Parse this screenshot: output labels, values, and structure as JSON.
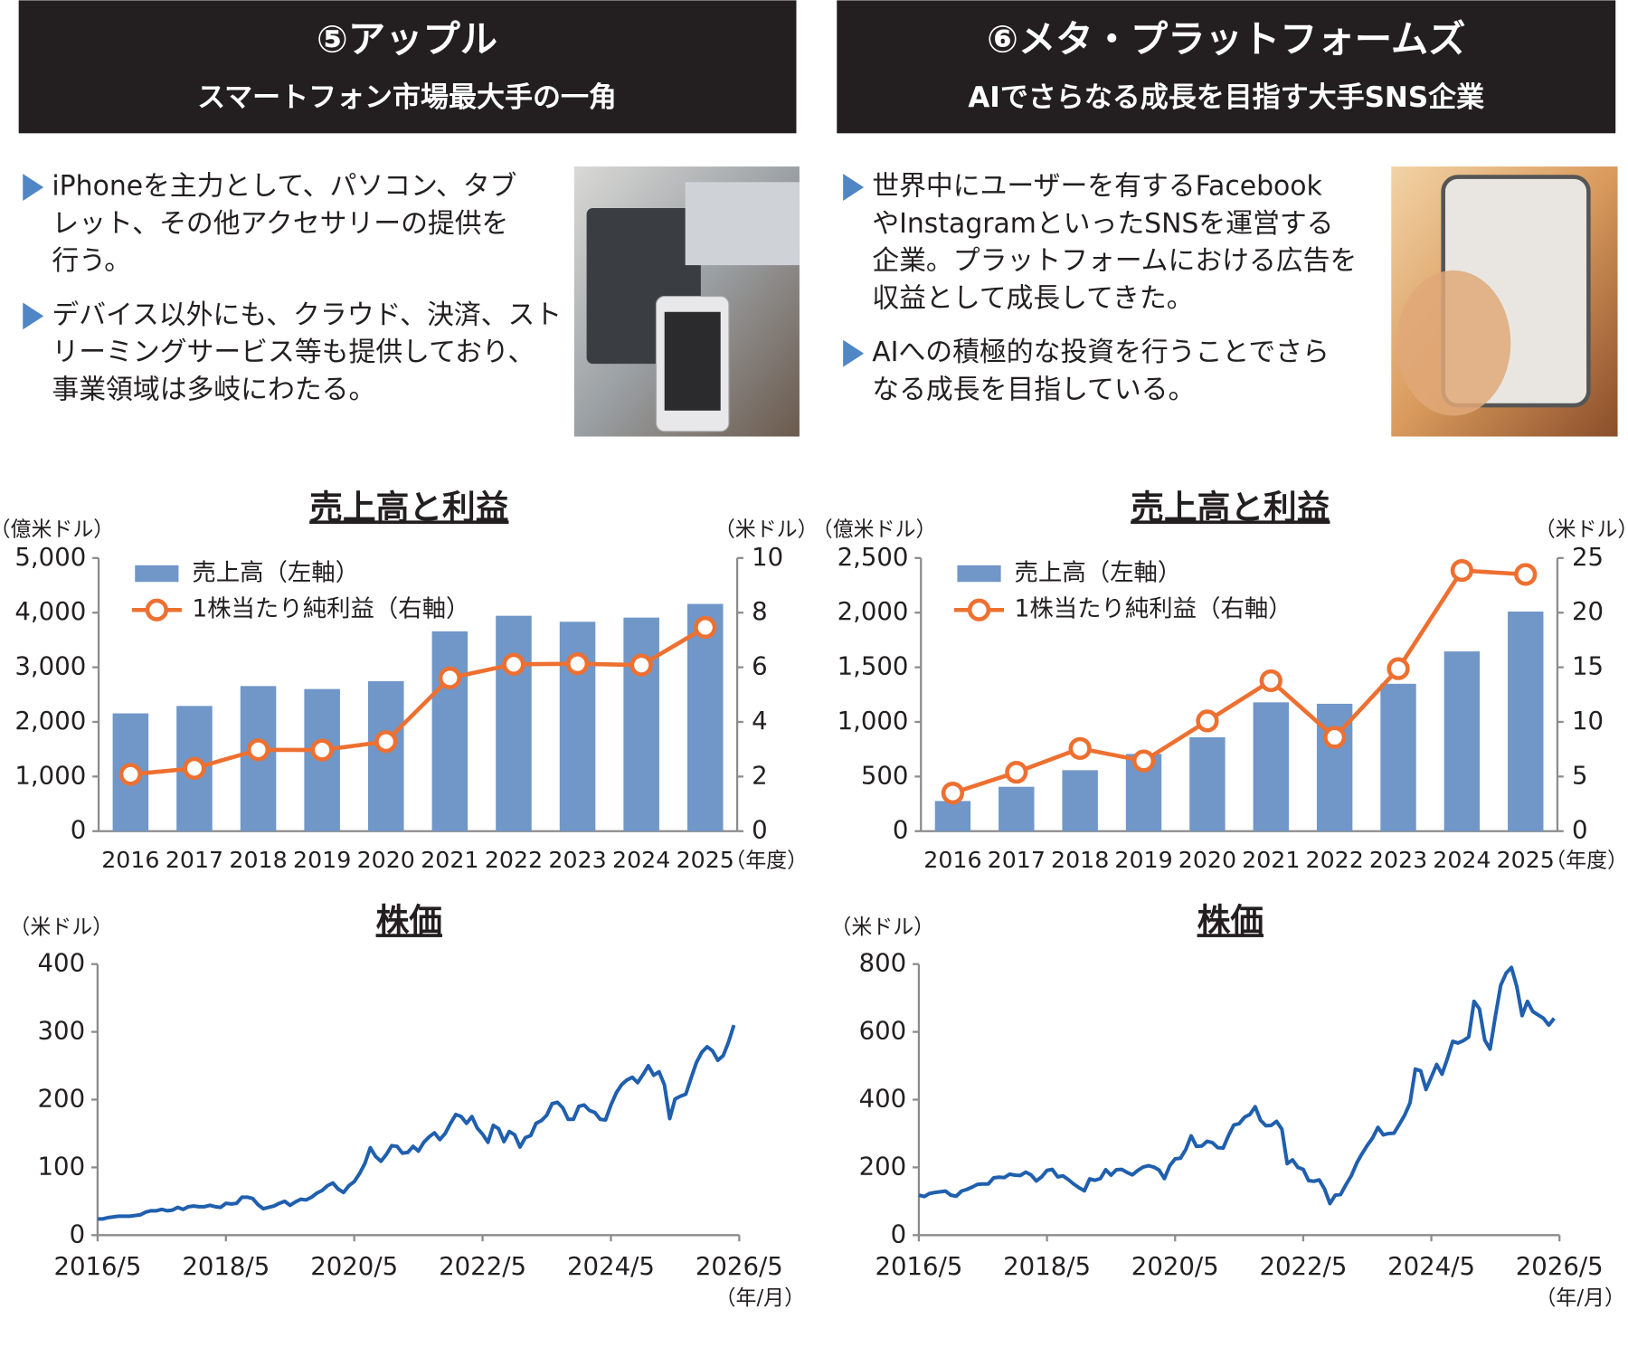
{
  "panels": [
    {
      "title": "⑤アップル",
      "subtitle": "スマートフォン市場最大手の一角",
      "bullets": [
        [
          "iPhoneを主力として、パソコン、タブ",
          "レット、その他アクセサリーの提供を",
          "行う。"
        ],
        [
          "デバイス以外にも、クラウド、決済、スト",
          "リーミングサービス等も提供しており、",
          "事業領域は多岐にわたる。"
        ]
      ]
    },
    {
      "title": "⑥メタ・プラットフォームズ",
      "subtitle": "AIでさらなる成長を目指す大手SNS企業",
      "bullets": [
        [
          "世界中にユーザーを有するFacebook",
          "やInstagramといったSNSを運営する",
          "企業。プラットフォームにおける広告を",
          "収益として成長してきた。"
        ],
        [
          "AIへの積極的な投資を行うことでさら",
          "なる成長を目指している。"
        ]
      ]
    }
  ],
  "chart_data": [
    {
      "type": "combo",
      "title": "売上高と利益",
      "y_unit": "（億米ドル）",
      "y2_unit": "（米ドル）",
      "x_unit": "（年度）",
      "categories": [
        "2016",
        "2017",
        "2018",
        "2019",
        "2020",
        "2021",
        "2022",
        "2023",
        "2024",
        "2025"
      ],
      "series": [
        {
          "name": "売上高（左軸）",
          "kind": "bar",
          "color": "#7097c8",
          "values": [
            2156,
            2292,
            2656,
            2602,
            2745,
            3658,
            3943,
            3833,
            3910,
            4160
          ]
        },
        {
          "name": "1株当たり純利益（右軸）",
          "kind": "line",
          "axis": "y2",
          "color": "#ed7031",
          "values": [
            2.08,
            2.3,
            2.98,
            2.97,
            3.28,
            5.61,
            6.11,
            6.13,
            6.08,
            7.46
          ]
        }
      ],
      "ylim": [
        0,
        5000
      ],
      "yticks": [
        0,
        {
          "value": 1000,
          "label": "1,000"
        },
        {
          "value": 2000,
          "label": "2,000"
        },
        {
          "value": 3000,
          "label": "3,000"
        },
        {
          "value": 4000,
          "label": "4,000"
        },
        {
          "value": 5000,
          "label": "5,000"
        }
      ],
      "y2lim": [
        0,
        10
      ],
      "y2ticks": [
        0,
        2,
        4,
        6,
        8,
        10
      ]
    },
    {
      "type": "combo",
      "title": "売上高と利益",
      "y_unit": "（億米ドル）",
      "y2_unit": "（米ドル）",
      "x_unit": "（年度）",
      "categories": [
        "2016",
        "2017",
        "2018",
        "2019",
        "2020",
        "2021",
        "2022",
        "2023",
        "2024",
        "2025"
      ],
      "series": [
        {
          "name": "売上高（左軸）",
          "kind": "bar",
          "color": "#7097c8",
          "values": [
            276,
            406,
            558,
            707,
            860,
            1179,
            1166,
            1349,
            1645,
            2010
          ]
        },
        {
          "name": "1株当たり純利益（右軸）",
          "kind": "line",
          "axis": "y2",
          "color": "#ed7031",
          "values": [
            3.49,
            5.39,
            7.57,
            6.43,
            10.09,
            13.77,
            8.59,
            14.87,
            23.86,
            23.5
          ]
        }
      ],
      "ylim": [
        0,
        2500
      ],
      "yticks": [
        0,
        500,
        {
          "value": 1000,
          "label": "1,000"
        },
        {
          "value": 1500,
          "label": "1,500"
        },
        {
          "value": 2000,
          "label": "2,000"
        },
        {
          "value": 2500,
          "label": "2,500"
        }
      ],
      "y2lim": [
        0,
        25
      ],
      "y2ticks": [
        0,
        5,
        10,
        15,
        20,
        25
      ]
    },
    {
      "type": "line",
      "title": "株価",
      "y_unit": "（米ドル）",
      "x_unit": "（年/月）",
      "x": [
        "2016/5",
        "2016/6",
        "2016/7",
        "2016/8",
        "2016/9",
        "2016/10",
        "2016/11",
        "2016/12",
        "2017/1",
        "2017/2",
        "2017/3",
        "2017/4",
        "2017/5",
        "2017/6",
        "2017/7",
        "2017/8",
        "2017/9",
        "2017/10",
        "2017/11",
        "2017/12",
        "2018/1",
        "2018/2",
        "2018/3",
        "2018/4",
        "2018/5",
        "2018/6",
        "2018/7",
        "2018/8",
        "2018/9",
        "2018/10",
        "2018/11",
        "2018/12",
        "2019/1",
        "2019/2",
        "2019/3",
        "2019/4",
        "2019/5",
        "2019/6",
        "2019/7",
        "2019/8",
        "2019/9",
        "2019/10",
        "2019/11",
        "2019/12",
        "2020/1",
        "2020/2",
        "2020/3",
        "2020/4",
        "2020/5",
        "2020/6",
        "2020/7",
        "2020/8",
        "2020/9",
        "2020/10",
        "2020/11",
        "2020/12",
        "2021/1",
        "2021/2",
        "2021/3",
        "2021/4",
        "2021/5",
        "2021/6",
        "2021/7",
        "2021/8",
        "2021/9",
        "2021/10",
        "2021/11",
        "2021/12",
        "2022/1",
        "2022/2",
        "2022/3",
        "2022/4",
        "2022/5",
        "2022/6",
        "2022/7",
        "2022/8",
        "2022/9",
        "2022/10",
        "2022/11",
        "2022/12",
        "2023/1",
        "2023/2",
        "2023/3",
        "2023/4",
        "2023/5",
        "2023/6",
        "2023/7",
        "2023/8",
        "2023/9",
        "2023/10",
        "2023/11",
        "2023/12",
        "2024/1",
        "2024/2",
        "2024/3",
        "2024/4",
        "2024/5",
        "2024/6",
        "2024/7",
        "2024/8",
        "2024/9",
        "2024/10",
        "2024/11",
        "2024/12",
        "2025/1",
        "2025/2",
        "2025/3",
        "2025/4",
        "2025/5",
        "2025/6",
        "2025/7",
        "2025/8",
        "2025/9",
        "2025/10",
        "2025/11",
        "2025/12",
        "2026/1",
        "2026/2",
        "2026/3",
        "2026/4"
      ],
      "series": [
        {
          "name": "アップル",
          "color": "#1f5fae",
          "values": [
            24,
            24,
            26,
            27,
            28,
            28,
            28,
            29,
            30,
            34,
            36,
            36,
            38,
            36,
            37,
            41,
            38,
            42,
            43,
            42,
            42,
            44,
            42,
            41,
            47,
            46,
            47,
            56,
            56,
            54,
            45,
            39,
            41,
            43,
            47,
            50,
            44,
            49,
            53,
            52,
            56,
            62,
            66,
            73,
            77,
            68,
            63,
            73,
            79,
            91,
            106,
            129,
            116,
            109,
            119,
            132,
            131,
            121,
            122,
            131,
            124,
            137,
            145,
            151,
            141,
            150,
            165,
            178,
            175,
            165,
            175,
            158,
            149,
            137,
            162,
            157,
            138,
            153,
            148,
            130,
            144,
            147,
            165,
            169,
            177,
            194,
            196,
            188,
            171,
            171,
            190,
            192,
            184,
            181,
            171,
            170,
            192,
            210,
            222,
            229,
            233,
            225,
            237,
            250,
            236,
            241,
            222,
            172,
            201,
            205,
            208,
            232,
            255,
            270,
            278,
            272,
            258,
            265,
            285,
            310
          ]
        }
      ],
      "xlim": [
        "2016/5",
        "2026/5"
      ],
      "xticks": [
        "2016/5",
        "2018/5",
        "2020/5",
        "2022/5",
        "2024/5",
        "2026/5"
      ],
      "ylim": [
        0,
        400
      ],
      "yticks": [
        0,
        100,
        200,
        300,
        400
      ]
    },
    {
      "type": "line",
      "title": "株価",
      "y_unit": "（米ドル）",
      "x_unit": "（年/月）",
      "x": [
        "2016/5",
        "2016/6",
        "2016/7",
        "2016/8",
        "2016/9",
        "2016/10",
        "2016/11",
        "2016/12",
        "2017/1",
        "2017/2",
        "2017/3",
        "2017/4",
        "2017/5",
        "2017/6",
        "2017/7",
        "2017/8",
        "2017/9",
        "2017/10",
        "2017/11",
        "2017/12",
        "2018/1",
        "2018/2",
        "2018/3",
        "2018/4",
        "2018/5",
        "2018/6",
        "2018/7",
        "2018/8",
        "2018/9",
        "2018/10",
        "2018/11",
        "2018/12",
        "2019/1",
        "2019/2",
        "2019/3",
        "2019/4",
        "2019/5",
        "2019/6",
        "2019/7",
        "2019/8",
        "2019/9",
        "2019/10",
        "2019/11",
        "2019/12",
        "2020/1",
        "2020/2",
        "2020/3",
        "2020/4",
        "2020/5",
        "2020/6",
        "2020/7",
        "2020/8",
        "2020/9",
        "2020/10",
        "2020/11",
        "2020/12",
        "2021/1",
        "2021/2",
        "2021/3",
        "2021/4",
        "2021/5",
        "2021/6",
        "2021/7",
        "2021/8",
        "2021/9",
        "2021/10",
        "2021/11",
        "2021/12",
        "2022/1",
        "2022/2",
        "2022/3",
        "2022/4",
        "2022/5",
        "2022/6",
        "2022/7",
        "2022/8",
        "2022/9",
        "2022/10",
        "2022/11",
        "2022/12",
        "2023/1",
        "2023/2",
        "2023/3",
        "2023/4",
        "2023/5",
        "2023/6",
        "2023/7",
        "2023/8",
        "2023/9",
        "2023/10",
        "2023/11",
        "2023/12",
        "2024/1",
        "2024/2",
        "2024/3",
        "2024/4",
        "2024/5",
        "2024/6",
        "2024/7",
        "2024/8",
        "2024/9",
        "2024/10",
        "2024/11",
        "2024/12",
        "2025/1",
        "2025/2",
        "2025/3",
        "2025/4",
        "2025/5",
        "2025/6",
        "2025/7",
        "2025/8",
        "2025/9",
        "2025/10",
        "2025/11",
        "2025/12",
        "2026/1",
        "2026/2",
        "2026/3",
        "2026/4"
      ],
      "series": [
        {
          "name": "メタ・プラットフォームズ",
          "color": "#1f5fae",
          "values": [
            118,
            114,
            123,
            126,
            128,
            130,
            118,
            115,
            130,
            135,
            142,
            150,
            151,
            151,
            169,
            171,
            170,
            180,
            177,
            176,
            186,
            178,
            160,
            172,
            191,
            194,
            172,
            175,
            164,
            151,
            140,
            131,
            166,
            162,
            167,
            193,
            177,
            193,
            194,
            185,
            178,
            191,
            201,
            205,
            201,
            192,
            167,
            205,
            225,
            227,
            253,
            293,
            262,
            263,
            277,
            273,
            258,
            257,
            294,
            325,
            329,
            348,
            356,
            379,
            339,
            323,
            324,
            336,
            313,
            211,
            222,
            200,
            194,
            161,
            159,
            163,
            136,
            93,
            118,
            120,
            149,
            175,
            212,
            240,
            265,
            287,
            318,
            296,
            300,
            301,
            327,
            354,
            390,
            490,
            485,
            430,
            467,
            504,
            475,
            521,
            572,
            567,
            574,
            585,
            690,
            668,
            576,
            549,
            647,
            738,
            773,
            790,
            734,
            648,
            690,
            660,
            650,
            640,
            620,
            640
          ]
        }
      ],
      "xlim": [
        "2016/5",
        "2026/5"
      ],
      "xticks": [
        "2016/5",
        "2018/5",
        "2020/5",
        "2022/5",
        "2024/5",
        "2026/5"
      ],
      "ylim": [
        0,
        800
      ],
      "yticks": [
        0,
        200,
        400,
        600,
        800
      ]
    }
  ]
}
